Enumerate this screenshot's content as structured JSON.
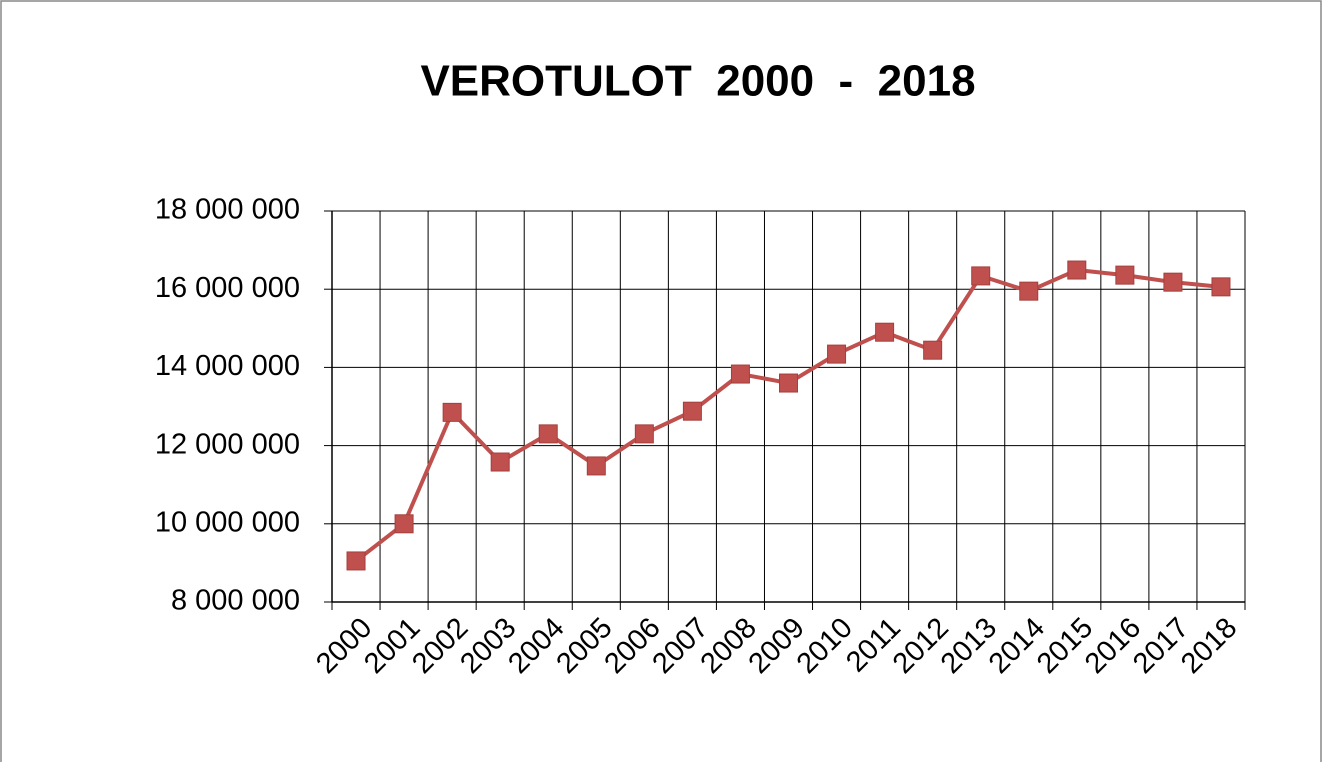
{
  "chart_data": {
    "type": "line",
    "title": "VEROTULOT  2000  -  2018",
    "categories": [
      "2000",
      "2001",
      "2002",
      "2003",
      "2004",
      "2005",
      "2006",
      "2007",
      "2008",
      "2009",
      "2010",
      "2011",
      "2012",
      "2013",
      "2014",
      "2015",
      "2016",
      "2017",
      "2018"
    ],
    "series": [
      {
        "name": "Verotulot",
        "color": "#c0504d",
        "values": [
          9050000,
          10000000,
          12850000,
          11580000,
          12300000,
          11480000,
          12300000,
          12880000,
          13830000,
          13600000,
          14340000,
          14900000,
          14440000,
          16340000,
          15950000,
          16490000,
          16360000,
          16180000,
          16060000
        ]
      }
    ],
    "ylim": [
      8000000,
      18000000
    ],
    "yticks": [
      {
        "value": 8000000,
        "label": "8 000 000"
      },
      {
        "value": 10000000,
        "label": "10 000 000"
      },
      {
        "value": 12000000,
        "label": "12 000 000"
      },
      {
        "value": 14000000,
        "label": "14 000 000"
      },
      {
        "value": 16000000,
        "label": "16 000 000"
      },
      {
        "value": 18000000,
        "label": "18 000 000"
      }
    ],
    "grid": true
  }
}
